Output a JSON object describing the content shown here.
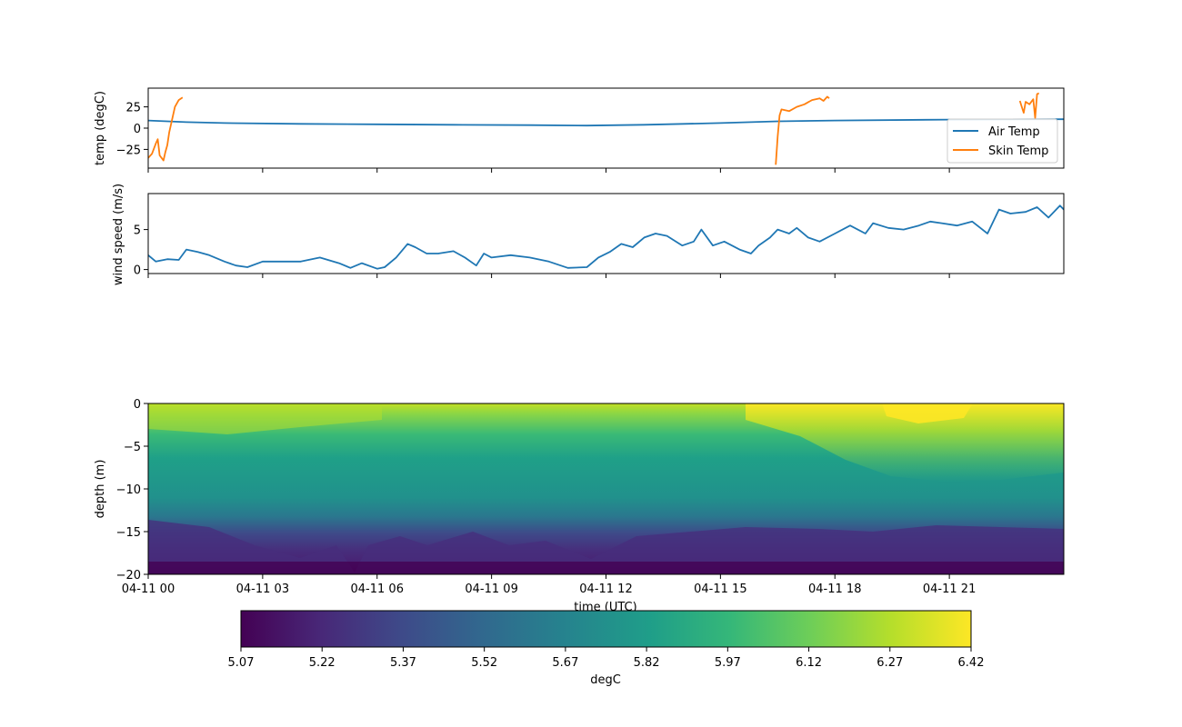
{
  "chart_data": [
    {
      "type": "line",
      "ylabel": "temp (degC)",
      "ylim": [
        -47,
        47
      ],
      "yticks": [
        "25",
        "0",
        "−25"
      ],
      "legend_position": "lower-right",
      "series": [
        {
          "name": "Air Temp",
          "color": "#1f77b4",
          "points": [
            [
              0,
              9
            ],
            [
              1,
              7
            ],
            [
              2,
              6
            ],
            [
              4,
              5
            ],
            [
              6,
              4.5
            ],
            [
              8,
              4
            ],
            [
              10,
              3.5
            ],
            [
              11.5,
              3
            ],
            [
              13,
              4
            ],
            [
              15,
              6
            ],
            [
              16.5,
              8
            ],
            [
              18,
              9
            ],
            [
              21,
              10
            ],
            [
              24,
              10.5
            ]
          ]
        },
        {
          "name": "Skin Temp",
          "color": "#ff7f0e",
          "segments": [
            [
              [
                0,
                -35
              ],
              [
                0.1,
                -30
              ],
              [
                0.2,
                -18
              ],
              [
                0.25,
                -13
              ],
              [
                0.3,
                -32
              ],
              [
                0.4,
                -38
              ],
              [
                0.45,
                -28
              ],
              [
                0.5,
                -20
              ],
              [
                0.55,
                -5
              ],
              [
                0.6,
                5
              ],
              [
                0.7,
                25
              ],
              [
                0.8,
                33
              ],
              [
                0.9,
                36
              ]
            ],
            [
              [
                16.45,
                -43
              ],
              [
                16.5,
                -10
              ],
              [
                16.55,
                15
              ],
              [
                16.6,
                22
              ],
              [
                16.8,
                20
              ],
              [
                17,
                25
              ],
              [
                17.2,
                28
              ],
              [
                17.4,
                33
              ],
              [
                17.6,
                35
              ],
              [
                17.7,
                32
              ],
              [
                17.8,
                37
              ],
              [
                17.85,
                35
              ]
            ],
            [
              [
                22.85,
                32
              ],
              [
                22.9,
                25
              ],
              [
                22.95,
                18
              ],
              [
                23.0,
                31
              ],
              [
                23.1,
                28
              ],
              [
                23.2,
                34
              ],
              [
                23.25,
                12
              ],
              [
                23.3,
                40
              ],
              [
                23.35,
                41
              ]
            ]
          ]
        }
      ]
    },
    {
      "type": "line",
      "ylabel": "wind speed (m/s)",
      "ylim": [
        -0.5,
        9.5
      ],
      "yticks": [
        "5",
        "0"
      ],
      "series": [
        {
          "name": "",
          "color": "#1f77b4",
          "points": [
            [
              0,
              1.8
            ],
            [
              0.2,
              1.0
            ],
            [
              0.5,
              1.3
            ],
            [
              0.8,
              1.2
            ],
            [
              1.0,
              2.5
            ],
            [
              1.3,
              2.2
            ],
            [
              1.6,
              1.8
            ],
            [
              2.0,
              1.0
            ],
            [
              2.3,
              0.5
            ],
            [
              2.6,
              0.3
            ],
            [
              3.0,
              1.0
            ],
            [
              3.5,
              1.0
            ],
            [
              4.0,
              1.0
            ],
            [
              4.5,
              1.5
            ],
            [
              5.0,
              0.8
            ],
            [
              5.3,
              0.2
            ],
            [
              5.6,
              0.8
            ],
            [
              6.0,
              0.1
            ],
            [
              6.2,
              0.3
            ],
            [
              6.5,
              1.5
            ],
            [
              6.8,
              3.2
            ],
            [
              7.0,
              2.8
            ],
            [
              7.3,
              2.0
            ],
            [
              7.6,
              2.0
            ],
            [
              8.0,
              2.3
            ],
            [
              8.3,
              1.5
            ],
            [
              8.6,
              0.5
            ],
            [
              8.8,
              2.0
            ],
            [
              9.0,
              1.5
            ],
            [
              9.5,
              1.8
            ],
            [
              10.0,
              1.5
            ],
            [
              10.5,
              1.0
            ],
            [
              11.0,
              0.2
            ],
            [
              11.5,
              0.3
            ],
            [
              11.8,
              1.5
            ],
            [
              12.1,
              2.2
            ],
            [
              12.4,
              3.2
            ],
            [
              12.7,
              2.8
            ],
            [
              13.0,
              4.0
            ],
            [
              13.3,
              4.5
            ],
            [
              13.6,
              4.2
            ],
            [
              14.0,
              3.0
            ],
            [
              14.3,
              3.5
            ],
            [
              14.5,
              5.0
            ],
            [
              14.8,
              3.0
            ],
            [
              15.1,
              3.5
            ],
            [
              15.5,
              2.5
            ],
            [
              15.8,
              2.0
            ],
            [
              16.0,
              3.0
            ],
            [
              16.3,
              4.0
            ],
            [
              16.5,
              5.0
            ],
            [
              16.8,
              4.5
            ],
            [
              17.0,
              5.2
            ],
            [
              17.3,
              4.0
            ],
            [
              17.6,
              3.5
            ],
            [
              18.0,
              4.5
            ],
            [
              18.4,
              5.5
            ],
            [
              18.8,
              4.5
            ],
            [
              19.0,
              5.8
            ],
            [
              19.4,
              5.2
            ],
            [
              19.8,
              5.0
            ],
            [
              20.2,
              5.5
            ],
            [
              20.5,
              6.0
            ],
            [
              20.8,
              5.8
            ],
            [
              21.2,
              5.5
            ],
            [
              21.6,
              6.0
            ],
            [
              22.0,
              4.5
            ],
            [
              22.3,
              7.5
            ],
            [
              22.6,
              7.0
            ],
            [
              23.0,
              7.2
            ],
            [
              23.3,
              7.8
            ],
            [
              23.6,
              6.5
            ],
            [
              23.9,
              8.0
            ],
            [
              24.0,
              7.5
            ]
          ]
        }
      ]
    },
    {
      "type": "heatmap",
      "xlabel": "time (UTC)",
      "ylabel": "depth (m)",
      "ylim": [
        -20,
        0
      ],
      "yticks": [
        "0",
        "−5",
        "−10",
        "−15",
        "−20"
      ],
      "xticks": [
        "04-11 00",
        "04-11 03",
        "04-11 06",
        "04-11 09",
        "04-11 12",
        "04-11 15",
        "04-11 18",
        "04-11 21"
      ],
      "colorbar": {
        "label": "degC",
        "min": 5.07,
        "max": 6.42,
        "ticks": [
          "5.07",
          "5.22",
          "5.37",
          "5.52",
          "5.67",
          "5.82",
          "5.97",
          "6.12",
          "6.27",
          "6.42"
        ]
      }
    }
  ]
}
